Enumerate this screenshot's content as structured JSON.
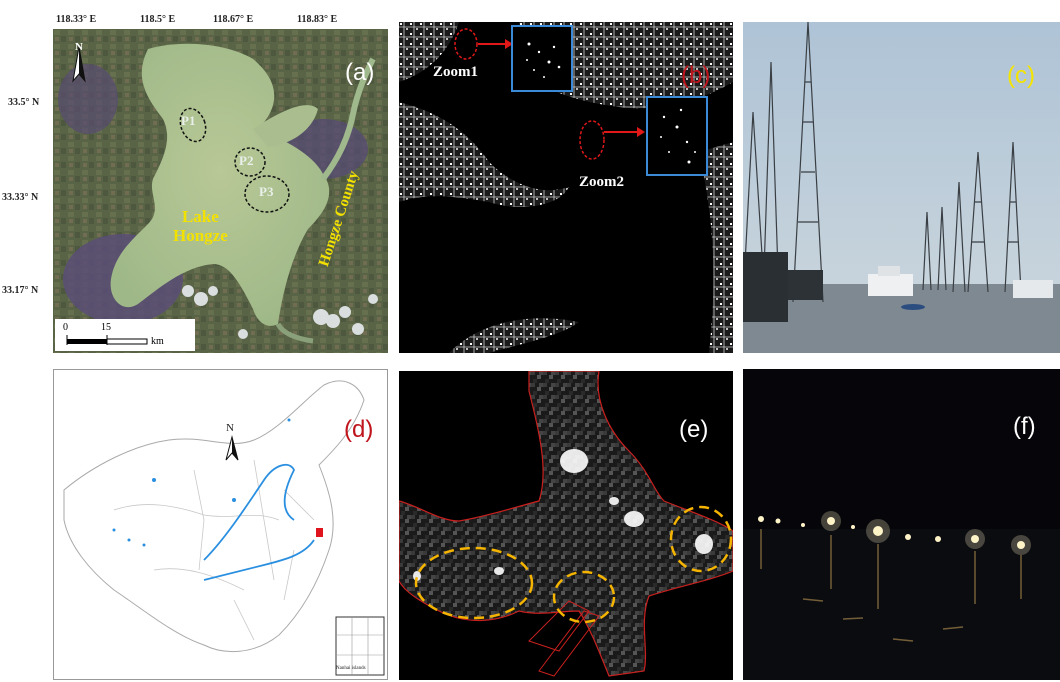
{
  "panel_a": {
    "label": "(a)",
    "lon_ticks": [
      "118.33° E",
      "118.5° E",
      "118.67° E",
      "118.83° E"
    ],
    "lat_ticks": [
      "33.5° N",
      "33.33° N",
      "33.17° N"
    ],
    "lake_name_1": "Lake",
    "lake_name_2": "Hongze",
    "county_name": "Hongze County",
    "points": [
      "P1",
      "P2",
      "P3"
    ],
    "north": "N",
    "scale_start": "0",
    "scale_mid": "15",
    "scale_unit": "km"
  },
  "panel_b": {
    "label": "(b)",
    "zoom1": "Zoom1",
    "zoom2": "Zoom2"
  },
  "panel_c": {
    "label": "(c)"
  },
  "panel_d": {
    "label": "(d)",
    "north": "N",
    "inset_caption": "Nanhai islands"
  },
  "panel_e": {
    "label": "(e)"
  },
  "panel_f": {
    "label": "(f)"
  },
  "colors": {
    "label_red": "#c0141c",
    "label_yellow": "#f5e400",
    "label_white": "#ffffff",
    "lake_name": "#f3e100",
    "river_blue": "#2a8fe0",
    "highlight_orange": "#f5b400",
    "outline_red": "#c8201e",
    "zoom_box_blue": "#3a8ad8"
  }
}
